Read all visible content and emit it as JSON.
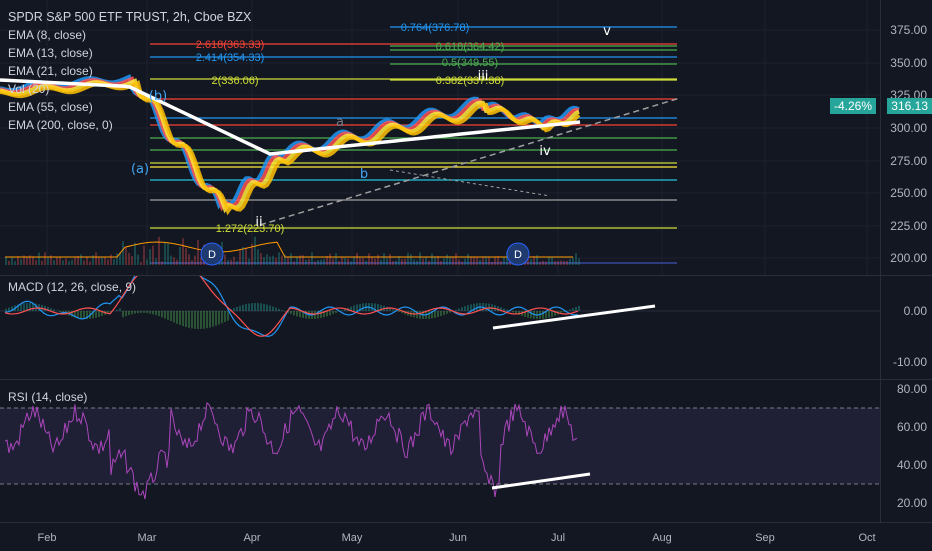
{
  "symbol": {
    "title": "SPDR S&P 500 ETF TRUST, 2h, Cboe BZX",
    "indicators": [
      "EMA (8, close)",
      "EMA (13, close)",
      "EMA (21, close)",
      "Vol (20)",
      "EMA (55, close)",
      "EMA (200, close, 0)"
    ]
  },
  "price_axis": {
    "labels": [
      "375.00",
      "350.00",
      "325.00",
      "300.00",
      "275.00",
      "250.00",
      "225.00",
      "200.00"
    ]
  },
  "current_price": {
    "change": "-4.26%",
    "price": "316.13",
    "color": "#26a69a"
  },
  "fib_levels": [
    {
      "label": "0.764(376.78)",
      "color": "#2196f3"
    },
    {
      "label": "2.618(363.33)",
      "color": "#f44336"
    },
    {
      "label": "0.618(364.42)",
      "color": "#4caf50"
    },
    {
      "label": "2.414(354.33)",
      "color": "#2196f3"
    },
    {
      "label": "0.5(349.55)",
      "color": "#4caf50"
    },
    {
      "label": "2(336.06)",
      "color": "#cddc39"
    },
    {
      "label": "0.382(337.38)",
      "color": "#cddc39"
    },
    {
      "label": "1.272(223.70)",
      "color": "#cddc39"
    }
  ],
  "wave_labels": [
    "v",
    "iii",
    "iv",
    "ii",
    "(a)",
    "(b)",
    "a",
    "b",
    "D",
    "D"
  ],
  "macd": {
    "legend": "MACD (12, 26, close, 9)",
    "axis": [
      "0.00",
      "-10.00"
    ]
  },
  "rsi": {
    "legend": "RSI (14, close)",
    "axis": [
      "80.00",
      "60.00",
      "40.00",
      "20.00"
    ]
  },
  "time_axis": [
    "Feb",
    "Mar",
    "Apr",
    "May",
    "Jun",
    "Jul",
    "Aug",
    "Sep",
    "Oct"
  ],
  "colors": {
    "background": "#131722",
    "ema8": "#2196f3",
    "ema13": "#ff5252",
    "ema21": "#ffeb3b",
    "ema200": "#ffffff",
    "rsi": "#9c27b0"
  }
}
